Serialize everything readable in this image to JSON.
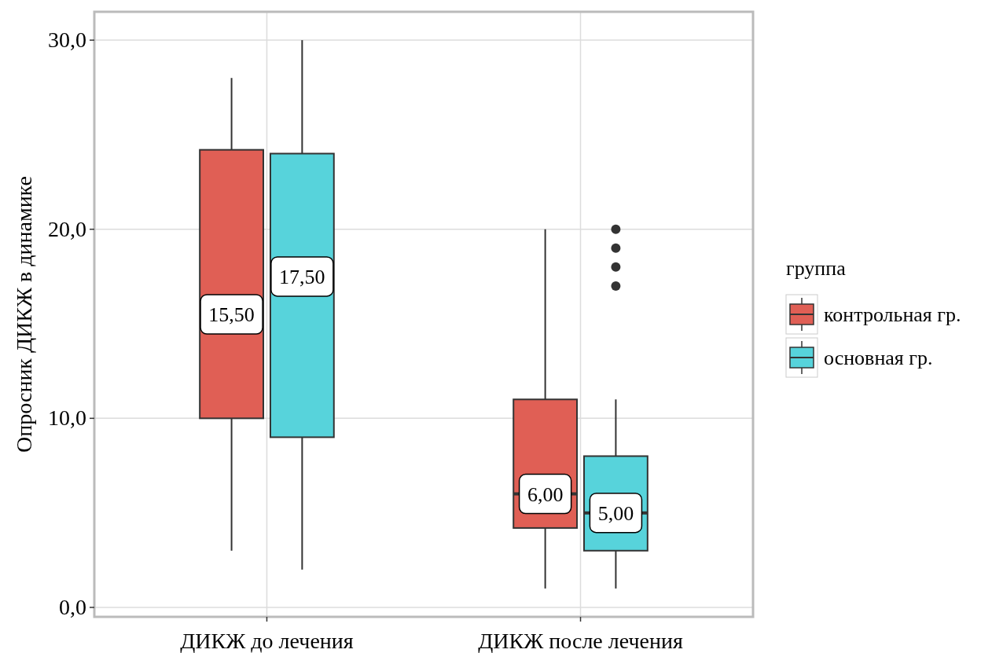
{
  "chart_data": {
    "type": "box",
    "ylabel": "Опросник ДИКЖ в динамике",
    "legend_title": "группа",
    "categories": [
      "ДИКЖ до лечения",
      "ДИКЖ после лечения"
    ],
    "series": [
      {
        "name": "контрольная гр.",
        "color": "#e05f55",
        "boxes": [
          {
            "low": 3,
            "q1": 10,
            "median": 15.5,
            "q3": 24.2,
            "high": 28
          },
          {
            "low": 1,
            "q1": 4.2,
            "median": 6,
            "q3": 11,
            "high": 20
          }
        ]
      },
      {
        "name": "основная гр.",
        "color": "#57d3db",
        "boxes": [
          {
            "low": 2,
            "q1": 9,
            "median": 17.5,
            "q3": 24,
            "high": 30
          },
          {
            "low": 1,
            "q1": 3,
            "median": 5,
            "q3": 8,
            "high": 11,
            "outliers": [
              17,
              18,
              19,
              20
            ]
          }
        ]
      }
    ],
    "ylim": [
      -0.5,
      31.5
    ],
    "yticks": [
      {
        "value": 0,
        "label": "0,0"
      },
      {
        "value": 10,
        "label": "10,0"
      },
      {
        "value": 20,
        "label": "20,0"
      },
      {
        "value": 30,
        "label": "30,0"
      }
    ],
    "annotations": [
      {
        "text": "15,50",
        "x": "ДИКЖ до лечения",
        "y": 15.5
      },
      {
        "text": "17,50",
        "x": "ДИКЖ до лечения",
        "y": 17.5
      },
      {
        "text": "6,00",
        "x": "ДИКЖ после лечения",
        "y": 6
      },
      {
        "text": "5,00",
        "x": "ДИКЖ после лечения",
        "y": 5
      }
    ],
    "grid": true,
    "legend": "right"
  }
}
